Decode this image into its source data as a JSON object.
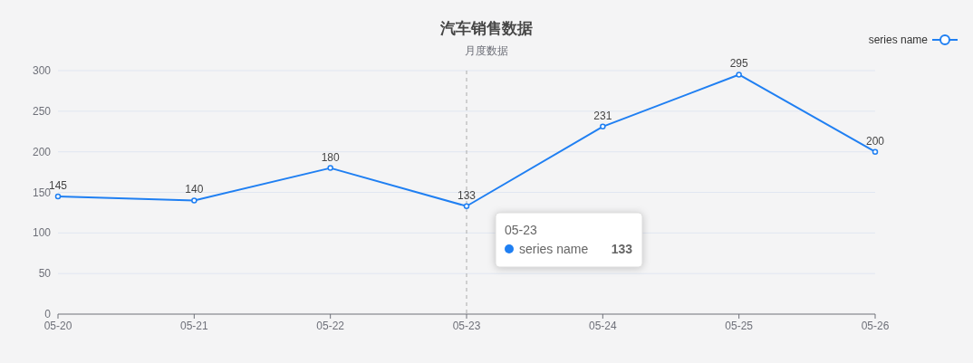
{
  "chart_data": {
    "type": "line",
    "title": "汽车销售数据",
    "subtitle": "月度数据",
    "categories": [
      "05-20",
      "05-21",
      "05-22",
      "05-23",
      "05-24",
      "05-25",
      "05-26"
    ],
    "series": [
      {
        "name": "series name",
        "color": "#1f7ff2",
        "values": [
          145,
          140,
          180,
          133,
          231,
          295,
          200
        ]
      }
    ],
    "ylim": [
      0,
      300
    ],
    "yticks": [
      0,
      50,
      100,
      150,
      200,
      250,
      300
    ],
    "grid": "y",
    "legend": "top right",
    "marker": "circle",
    "data_labels": true,
    "ref_lines": [
      {
        "axis": "x",
        "value": "05-23",
        "color": "#aaaaaa",
        "line_style": "dashed"
      }
    ],
    "annotations": [
      "05-23",
      "series name",
      "133"
    ]
  }
}
